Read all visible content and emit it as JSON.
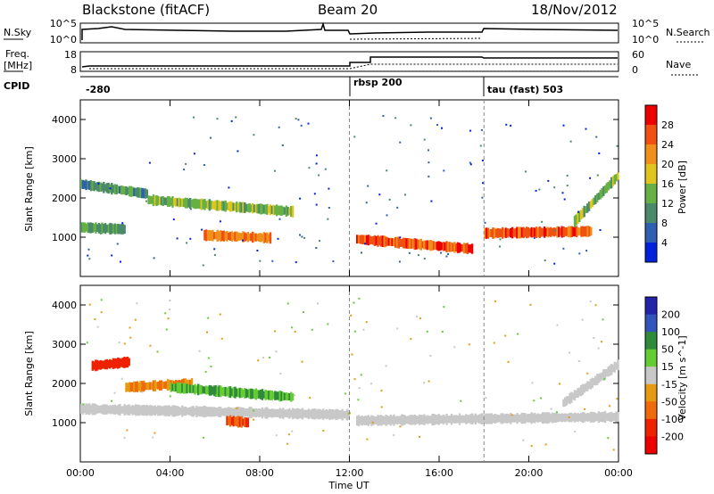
{
  "header": {
    "station": "Blackstone (fitACF)",
    "beam": "Beam 20",
    "date": "18/Nov/2012"
  },
  "top_panels": {
    "nsky_label": "N.Sky",
    "nsky_ticks": [
      "10^5",
      "10^0"
    ],
    "nsky_right_ticks": [
      "10^5",
      "10^0"
    ],
    "nsearch_label": "N.Search",
    "freq_label": "Freq.",
    "freq_unit": "[MHz]",
    "freq_ticks": [
      "18",
      "8"
    ],
    "nave_ticks": [
      "60",
      "0"
    ],
    "nave_label": "Nave",
    "cpid_label": "CPID",
    "cpid_segments": [
      "-280",
      "rbsp 200",
      "tau (fast) 503"
    ]
  },
  "colors": {
    "power": [
      "#0022dd",
      "#2e5fb0",
      "#4a8a6a",
      "#66b044",
      "#e2c41e",
      "#f0901a",
      "#f05010",
      "#ee0000"
    ],
    "velocity": [
      "#2222aa",
      "#3355bb",
      "#2f8a3a",
      "#66cc33",
      "#c8c8c8",
      "#e69a12",
      "#ee6a0a",
      "#ee2200"
    ]
  },
  "chart_data": [
    {
      "type": "heatmap",
      "title": "",
      "xlabel": "",
      "ylabel": "Slant Range [km]",
      "x_ticks": [
        "00:00",
        "04:00",
        "08:00",
        "12:00",
        "16:00",
        "20:00",
        "00:00"
      ],
      "y_ticks": [
        1000,
        2000,
        3000,
        4000
      ],
      "ylim": [
        0,
        4500
      ],
      "xlim_hours": [
        0,
        24
      ],
      "colorbar_label": "Power [dB]",
      "colorbar_ticks": [
        4,
        8,
        12,
        16,
        20,
        24,
        28
      ],
      "mode_change_hours": [
        12,
        18
      ],
      "echo_bands": [
        {
          "t_start": 0.0,
          "t_end": 2.0,
          "range_start_km": 1250,
          "range_end_km": 1200,
          "power_db": 12
        },
        {
          "t_start": 0.0,
          "t_end": 3.0,
          "range_start_km": 2350,
          "range_end_km": 2100,
          "power_db": 10
        },
        {
          "t_start": 3.0,
          "t_end": 9.5,
          "range_start_km": 1950,
          "range_end_km": 1650,
          "power_db": 14
        },
        {
          "t_start": 5.5,
          "t_end": 8.5,
          "range_start_km": 1050,
          "range_end_km": 980,
          "power_db": 24
        },
        {
          "t_start": 12.3,
          "t_end": 17.5,
          "range_start_km": 950,
          "range_end_km": 700,
          "power_db": 26
        },
        {
          "t_start": 18.0,
          "t_end": 22.8,
          "range_start_km": 1100,
          "range_end_km": 1150,
          "power_db": 26
        },
        {
          "t_start": 22.0,
          "t_end": 24.0,
          "range_start_km": 1400,
          "range_end_km": 2600,
          "power_db": 14
        }
      ]
    },
    {
      "type": "heatmap",
      "title": "",
      "xlabel": "Time UT",
      "ylabel": "Slant Range [km]",
      "x_ticks": [
        "00:00",
        "04:00",
        "08:00",
        "12:00",
        "16:00",
        "20:00",
        "00:00"
      ],
      "y_ticks": [
        1000,
        2000,
        3000,
        4000
      ],
      "ylim": [
        0,
        4500
      ],
      "xlim_hours": [
        0,
        24
      ],
      "colorbar_label": "Velocity [m s^-1]",
      "colorbar_ticks": [
        200,
        100,
        50,
        15,
        -15,
        -50,
        -100,
        -200
      ],
      "mode_change_hours": [
        12,
        18
      ],
      "echo_bands": [
        {
          "t_start": 0.5,
          "t_end": 2.2,
          "range_start_km": 2450,
          "range_end_km": 2550,
          "velocity_ms": -200
        },
        {
          "t_start": 2.0,
          "t_end": 5.0,
          "range_start_km": 1900,
          "range_end_km": 2000,
          "velocity_ms": -50
        },
        {
          "t_start": 0.0,
          "t_end": 12.0,
          "range_start_km": 1350,
          "range_end_km": 1200,
          "velocity_ms": 0
        },
        {
          "t_start": 4.0,
          "t_end": 9.5,
          "range_start_km": 1900,
          "range_end_km": 1650,
          "velocity_ms": 50
        },
        {
          "t_start": 6.5,
          "t_end": 7.5,
          "range_start_km": 1050,
          "range_end_km": 1000,
          "velocity_ms": -100
        },
        {
          "t_start": 12.3,
          "t_end": 24.0,
          "range_start_km": 1050,
          "range_end_km": 1150,
          "velocity_ms": 0
        },
        {
          "t_start": 21.5,
          "t_end": 24.0,
          "range_start_km": 1500,
          "range_end_km": 2500,
          "velocity_ms": 0
        }
      ]
    }
  ]
}
